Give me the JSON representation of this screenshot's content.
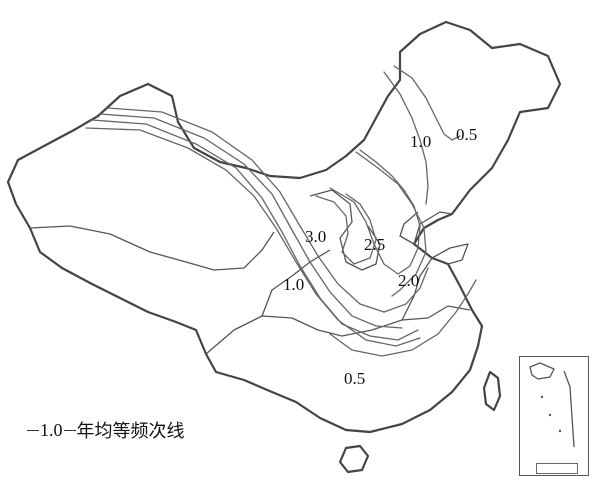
{
  "legend": {
    "value": "1.0",
    "text": "年均等频次线"
  },
  "isolines": [
    {
      "id": "ne-1.0",
      "label": "1.0"
    },
    {
      "id": "ne-0.5",
      "label": "0.5"
    },
    {
      "id": "c-3.0",
      "label": "3.0"
    },
    {
      "id": "c-2.5",
      "label": "2.5"
    },
    {
      "id": "c-2.0",
      "label": "2.0"
    },
    {
      "id": "w-1.0",
      "label": "1.0"
    },
    {
      "id": "s-0.5",
      "label": "0.5"
    }
  ]
}
